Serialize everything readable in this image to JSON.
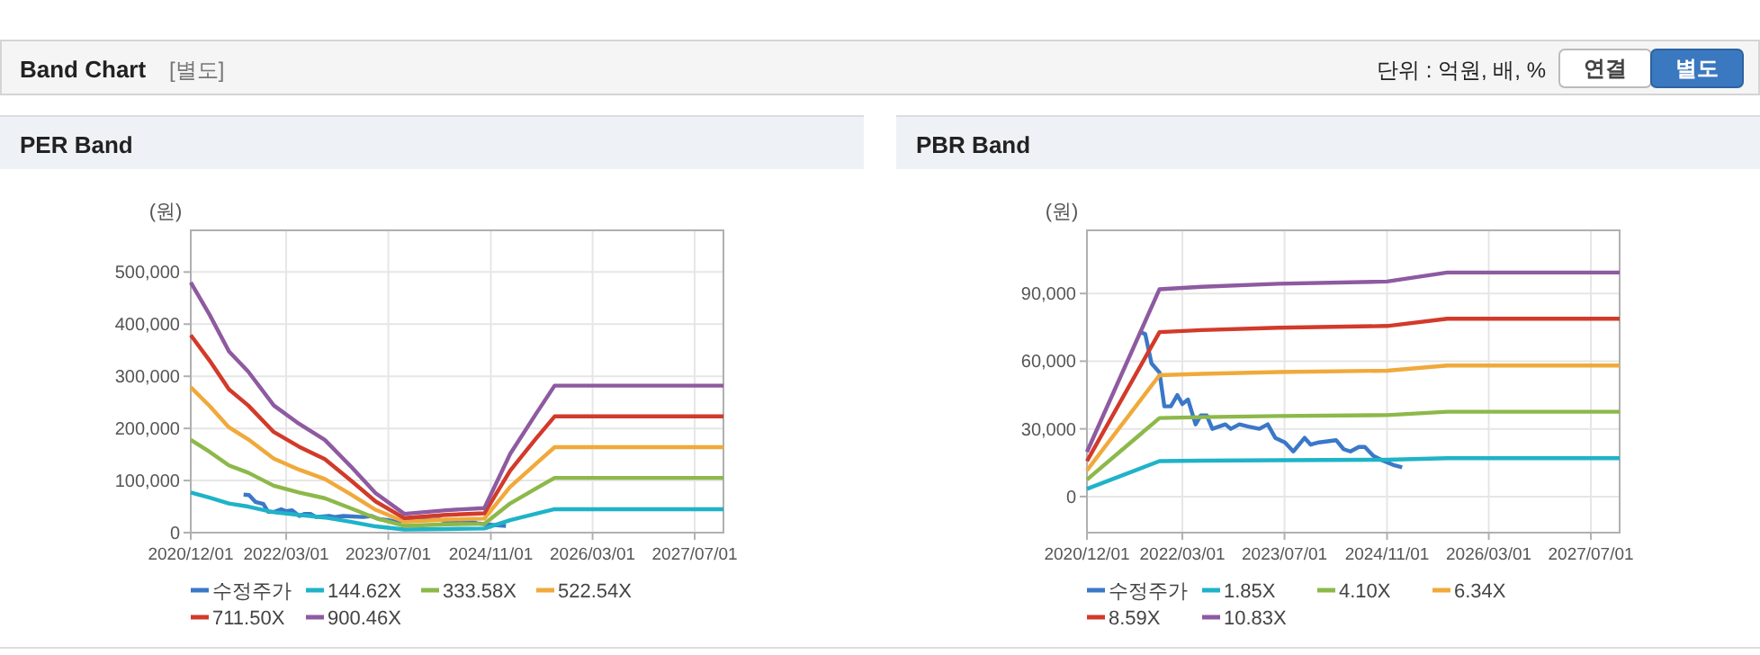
{
  "chart_data": [
    {
      "type": "other",
      "title": "Band Chart",
      "annotations": [
        "[별도]",
        "단위 : 억원, 배, %",
        "연결",
        "별도"
      ]
    },
    {
      "type": "line",
      "title": "PER Band",
      "ylabel": "(원)",
      "xlim": [
        "2020-12-01",
        "2027-11-15"
      ],
      "ylim": [
        0,
        580000
      ],
      "xticks": [
        {
          "value": "2020-12-01",
          "label": "2020/12/01"
        },
        {
          "value": "2022-03-01",
          "label": "2022/03/01"
        },
        {
          "value": "2023-07-01",
          "label": "2023/07/01"
        },
        {
          "value": "2024-11-01",
          "label": "2024/11/01"
        },
        {
          "value": "2026-03-01",
          "label": "2026/03/01"
        },
        {
          "value": "2027-07-01",
          "label": "2027/07/01"
        }
      ],
      "yticks": [
        0,
        {
          "value": 100000,
          "label": "100,000"
        },
        {
          "value": 200000,
          "label": "200,000"
        },
        {
          "value": 300000,
          "label": "300,000"
        },
        {
          "value": 400000,
          "label": "400,000"
        },
        {
          "value": 500000,
          "label": "500,000"
        }
      ],
      "grid": true,
      "legend": "bottom",
      "marker": "none",
      "series": [
        {
          "name": "수정주가",
          "color": "#3a78c8",
          "x": [
            "2021-08-10",
            "2021-09-05",
            "2021-10-05",
            "2021-11-12",
            "2021-12-05",
            "2022-01-05",
            "2022-02-05",
            "2022-03-01",
            "2022-03-28",
            "2022-05-03",
            "2022-05-28",
            "2022-06-25",
            "2022-07-22",
            "2022-09-22",
            "2022-10-18",
            "2022-11-28",
            "2023-01-10",
            "2023-03-03",
            "2023-04-12",
            "2023-05-18",
            "2023-07-03",
            "2023-08-12",
            "2023-10-05",
            "2023-11-03",
            "2023-12-12",
            "2024-03-03",
            "2024-04-08",
            "2024-05-10",
            "2024-06-20",
            "2024-07-18",
            "2024-08-28",
            "2024-10-10",
            "2024-12-01",
            "2025-01-12"
          ],
          "values": [
            73000,
            72000,
            59000,
            55000,
            40000,
            40000,
            45000,
            41000,
            43000,
            32000,
            36000,
            36000,
            30000,
            32000,
            30000,
            32000,
            31000,
            30000,
            32000,
            26000,
            24000,
            20000,
            26000,
            23000,
            24000,
            25000,
            21000,
            20000,
            22000,
            22000,
            18000,
            16000,
            14000,
            13000
          ]
        },
        {
          "name": "144.62X",
          "color": "#1fb3c8",
          "x": [
            "2020-12-01",
            "2021-03-01",
            "2021-06-01",
            "2021-09-01",
            "2022-01-01",
            "2022-05-01",
            "2022-09-01",
            "2023-01-01",
            "2023-05-01",
            "2023-09-15",
            "2024-04-01",
            "2024-10-01",
            "2025-02-01",
            "2025-06-01",
            "2025-09-01",
            "2027-11-15"
          ],
          "values": [
            77000,
            67000,
            56000,
            50000,
            39000,
            34000,
            29000,
            21000,
            12000,
            6000,
            7000,
            8000,
            24000,
            36000,
            45000,
            45000
          ]
        },
        {
          "name": "333.58X",
          "color": "#8db84a",
          "x": [
            "2020-12-01",
            "2021-03-01",
            "2021-06-01",
            "2021-09-01",
            "2022-01-01",
            "2022-05-01",
            "2022-09-01",
            "2023-01-01",
            "2023-05-01",
            "2023-09-15",
            "2024-04-01",
            "2024-10-01",
            "2025-02-01",
            "2025-06-01",
            "2025-09-01",
            "2027-11-15"
          ],
          "values": [
            178000,
            155000,
            129000,
            115000,
            90000,
            77000,
            66000,
            47000,
            28000,
            13000,
            16000,
            17000,
            56000,
            84000,
            105000,
            105000
          ]
        },
        {
          "name": "522.54X",
          "color": "#f0a93a",
          "x": [
            "2020-12-01",
            "2021-03-01",
            "2021-06-01",
            "2021-09-01",
            "2022-01-01",
            "2022-05-01",
            "2022-09-01",
            "2023-01-01",
            "2023-05-01",
            "2023-09-15",
            "2024-04-01",
            "2024-10-01",
            "2025-02-01",
            "2025-06-01",
            "2025-09-01",
            "2027-11-15"
          ],
          "values": [
            279000,
            243000,
            202000,
            179000,
            142000,
            121000,
            103000,
            74000,
            44000,
            21000,
            25000,
            27000,
            88000,
            131000,
            164000,
            164000
          ]
        },
        {
          "name": "711.50X",
          "color": "#d23a2a",
          "x": [
            "2020-12-01",
            "2021-03-01",
            "2021-06-01",
            "2021-09-01",
            "2022-01-01",
            "2022-05-01",
            "2022-09-01",
            "2023-01-01",
            "2023-05-01",
            "2023-09-15",
            "2024-04-01",
            "2024-10-01",
            "2025-02-01",
            "2025-06-01",
            "2025-09-01",
            "2027-11-15"
          ],
          "values": [
            379000,
            330000,
            275000,
            244000,
            193000,
            165000,
            141000,
            101000,
            60000,
            28000,
            34000,
            37000,
            119000,
            179000,
            223000,
            223000
          ]
        },
        {
          "name": "900.46X",
          "color": "#8e5aa0",
          "x": [
            "2020-12-01",
            "2021-03-01",
            "2021-06-01",
            "2021-09-01",
            "2022-01-01",
            "2022-05-01",
            "2022-09-01",
            "2023-01-01",
            "2023-05-01",
            "2023-09-15",
            "2024-04-01",
            "2024-10-01",
            "2025-02-01",
            "2025-06-01",
            "2025-09-01",
            "2027-11-15"
          ],
          "values": [
            480000,
            418000,
            348000,
            309000,
            244000,
            209000,
            178000,
            128000,
            76000,
            36000,
            43000,
            47000,
            151000,
            226000,
            282000,
            282000
          ]
        }
      ]
    },
    {
      "type": "line",
      "title": "PBR Band",
      "ylabel": "(원)",
      "xlim": [
        "2020-12-01",
        "2027-11-15"
      ],
      "ylim": [
        -16000,
        118000
      ],
      "xticks": [
        {
          "value": "2020-12-01",
          "label": "2020/12/01"
        },
        {
          "value": "2022-03-01",
          "label": "2022/03/01"
        },
        {
          "value": "2023-07-01",
          "label": "2023/07/01"
        },
        {
          "value": "2024-11-01",
          "label": "2024/11/01"
        },
        {
          "value": "2026-03-01",
          "label": "2026/03/01"
        },
        {
          "value": "2027-07-01",
          "label": "2027/07/01"
        }
      ],
      "yticks": [
        0,
        {
          "value": 30000,
          "label": "30,000"
        },
        {
          "value": 60000,
          "label": "60,000"
        },
        {
          "value": 90000,
          "label": "90,000"
        }
      ],
      "grid": true,
      "legend": "bottom",
      "marker": "none",
      "series": [
        {
          "name": "수정주가",
          "color": "#3a78c8",
          "x": [
            "2021-08-10",
            "2021-09-05",
            "2021-10-05",
            "2021-11-12",
            "2021-12-05",
            "2022-01-05",
            "2022-02-05",
            "2022-03-01",
            "2022-03-28",
            "2022-05-03",
            "2022-05-28",
            "2022-06-25",
            "2022-07-22",
            "2022-09-22",
            "2022-10-18",
            "2022-11-28",
            "2023-01-10",
            "2023-03-03",
            "2023-04-12",
            "2023-05-18",
            "2023-07-03",
            "2023-08-12",
            "2023-10-05",
            "2023-11-03",
            "2023-12-12",
            "2024-03-03",
            "2024-04-08",
            "2024-05-10",
            "2024-06-20",
            "2024-07-18",
            "2024-08-28",
            "2024-10-10",
            "2024-12-01",
            "2025-01-12"
          ],
          "values": [
            73000,
            72000,
            59000,
            55000,
            40000,
            40000,
            45000,
            41000,
            43000,
            32000,
            36000,
            36000,
            30000,
            32000,
            30000,
            32000,
            31000,
            30000,
            32000,
            26000,
            24000,
            20000,
            26000,
            23000,
            24000,
            25000,
            21000,
            20000,
            22000,
            22000,
            18000,
            16000,
            14000,
            13000
          ]
        },
        {
          "name": "1.85X",
          "color": "#1fb3c8",
          "x": [
            "2020-12-01",
            "2021-11-12",
            "2022-06-01",
            "2023-06-01",
            "2024-11-01",
            "2025-08-15",
            "2027-11-15"
          ],
          "values": [
            3400,
            15700,
            15900,
            16100,
            16300,
            17000,
            17000
          ]
        },
        {
          "name": "4.10X",
          "color": "#8db84a",
          "x": [
            "2020-12-01",
            "2021-11-12",
            "2022-06-01",
            "2023-06-01",
            "2024-11-01",
            "2025-08-15",
            "2027-11-15"
          ],
          "values": [
            7500,
            34800,
            35200,
            35700,
            36100,
            37600,
            37600
          ]
        },
        {
          "name": "6.34X",
          "color": "#f0a93a",
          "x": [
            "2020-12-01",
            "2021-11-12",
            "2022-06-01",
            "2023-06-01",
            "2024-11-01",
            "2025-08-15",
            "2027-11-15"
          ],
          "values": [
            11600,
            53800,
            54400,
            55200,
            55800,
            58100,
            58100
          ]
        },
        {
          "name": "8.59X",
          "color": "#d23a2a",
          "x": [
            "2020-12-01",
            "2021-11-12",
            "2022-06-01",
            "2023-06-01",
            "2024-11-01",
            "2025-08-15",
            "2027-11-15"
          ],
          "values": [
            15700,
            72900,
            73800,
            74800,
            75600,
            78800,
            78800
          ]
        },
        {
          "name": "10.83X",
          "color": "#8e5aa0",
          "x": [
            "2020-12-01",
            "2021-11-12",
            "2022-06-01",
            "2023-06-01",
            "2024-11-01",
            "2025-08-15",
            "2027-11-15"
          ],
          "values": [
            19800,
            91900,
            93000,
            94300,
            95300,
            99300,
            99300
          ]
        }
      ]
    }
  ]
}
